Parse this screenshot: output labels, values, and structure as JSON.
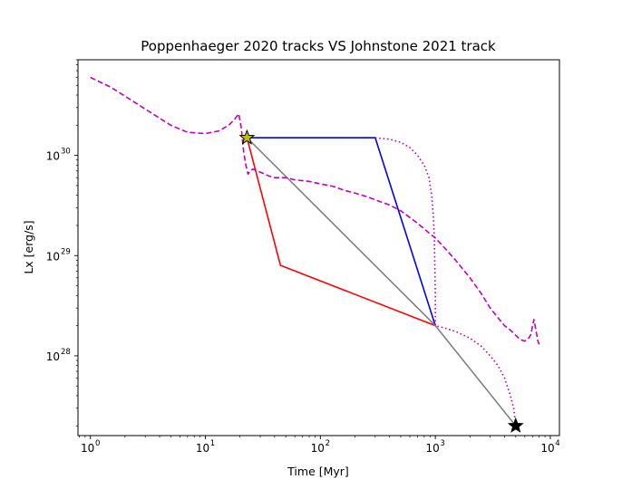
{
  "chart_data": {
    "type": "line",
    "title": "Poppenhaeger 2020 tracks VS Johnstone 2021 track",
    "xlabel": "Time [Myr]",
    "ylabel": "Lx [erg/s]",
    "xscale": "log",
    "yscale": "log",
    "xlim": [
      0.78,
      12000
    ],
    "ylim": [
      1.6e+27,
      9e+30
    ],
    "x_ticks": [
      {
        "value": 1,
        "base": "10",
        "exp": "0"
      },
      {
        "value": 10,
        "base": "10",
        "exp": "1"
      },
      {
        "value": 100,
        "base": "10",
        "exp": "2"
      },
      {
        "value": 1000,
        "base": "10",
        "exp": "3"
      },
      {
        "value": 10000,
        "base": "10",
        "exp": "4"
      }
    ],
    "y_ticks": [
      {
        "value": 1e+28,
        "base": "10",
        "exp": "28"
      },
      {
        "value": 1e+29,
        "base": "10",
        "exp": "29"
      },
      {
        "value": 1e+30,
        "base": "10",
        "exp": "30"
      }
    ],
    "grid": false,
    "legend": "none",
    "series": [
      {
        "color": "#ff0000",
        "style": "solid",
        "x": [
          23,
          45,
          1000
        ],
        "y": [
          1.5e+30,
          8e+28,
          2e+28
        ]
      },
      {
        "color": "#0000ff",
        "style": "solid",
        "x": [
          23,
          300,
          1000
        ],
        "y": [
          1.5e+30,
          1.5e+30,
          2e+28
        ]
      },
      {
        "color": "#808080",
        "style": "solid",
        "x": [
          23,
          1000,
          5000
        ],
        "y": [
          1.5e+30,
          2e+28,
          2e+27
        ]
      },
      {
        "color": "#bf00bf",
        "style": "dotted",
        "x": [
          300,
          400,
          500,
          600,
          700,
          800,
          880,
          930,
          960,
          980,
          990,
          1000,
          1000,
          1200,
          1500,
          2000,
          2500,
          3000,
          3500,
          4000,
          4500,
          4800,
          5000
        ],
        "y": [
          1.5e+30,
          1.45e+30,
          1.35e+30,
          1.2e+30,
          1e+30,
          8e+29,
          6e+29,
          4e+29,
          2.5e+29,
          1.5e+29,
          8e+28,
          4e+28,
          2e+28,
          1.9e+28,
          1.75e+28,
          1.5e+28,
          1.25e+28,
          1e+28,
          8e+27,
          6e+27,
          4e+27,
          3e+27,
          2e+27
        ]
      },
      {
        "color": "#bf00bf",
        "style": "dashed",
        "x": [
          1,
          1.5,
          2,
          3,
          5,
          7,
          10,
          13,
          16,
          18,
          19.5,
          20.5,
          21.5,
          22.5,
          23.5,
          24.5,
          26,
          28,
          30,
          33,
          36,
          40,
          50,
          60,
          80,
          100,
          130,
          160,
          200,
          250,
          300,
          400,
          500,
          600,
          700,
          800,
          900,
          1000,
          1200,
          1500,
          2000,
          2500,
          3000,
          3500,
          4000,
          4500,
          5000,
          5500,
          6000,
          6500,
          6800,
          7000,
          7200,
          7500,
          7800,
          8000
        ],
        "y": [
          6e+30,
          4.8e+30,
          3.9e+30,
          2.9e+30,
          2e+30,
          1.7e+30,
          1.65e+30,
          1.75e+30,
          2e+30,
          2.3e+30,
          2.6e+30,
          1.9e+30,
          1.1e+30,
          8e+29,
          6.5e+29,
          7e+29,
          7.3e+29,
          7e+29,
          6.8e+29,
          6.5e+29,
          6.2e+29,
          6e+29,
          6e+29,
          5.7e+29,
          5.5e+29,
          5.2e+29,
          4.9e+29,
          4.5e+29,
          4.2e+29,
          3.9e+29,
          3.6e+29,
          3.2e+29,
          2.8e+29,
          2.4e+29,
          2.1e+29,
          1.85e+29,
          1.65e+29,
          1.5e+29,
          1.2e+29,
          9e+28,
          6e+28,
          4.2e+28,
          3e+28,
          2.4e+28,
          2e+28,
          1.8e+28,
          1.6e+28,
          1.45e+28,
          1.4e+28,
          1.5e+28,
          1.65e+28,
          2e+28,
          2.3e+28,
          1.8e+28,
          1.4e+28,
          1.3e+28
        ]
      }
    ],
    "markers": [
      {
        "x": 23,
        "y": 1.5e+30,
        "shape": "star",
        "fill": "#bfbf00"
      },
      {
        "x": 5000,
        "y": 2e+27,
        "shape": "star",
        "fill": "#000000"
      }
    ]
  }
}
